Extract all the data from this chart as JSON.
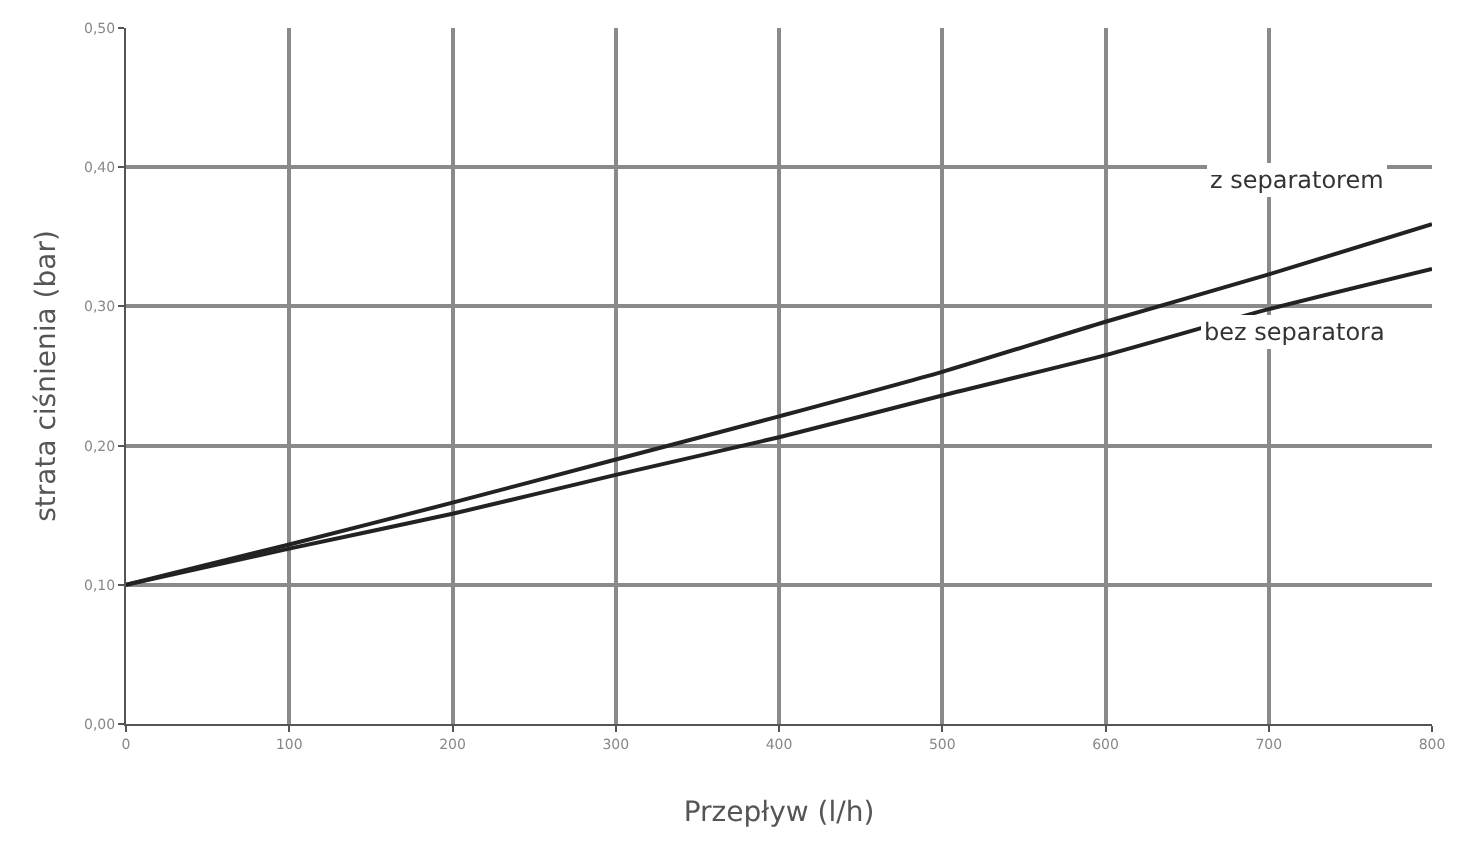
{
  "chart_data": {
    "type": "line",
    "xlabel": "Przepływ (l/h)",
    "ylabel": "strata ciśnienia (bar)",
    "x": [
      0,
      100,
      200,
      300,
      400,
      500,
      600,
      700,
      800
    ],
    "series": [
      {
        "name": "z separatorem",
        "color": "#222222",
        "values": [
          0.1,
          0.129,
          0.159,
          0.19,
          0.221,
          0.253,
          0.289,
          0.323,
          0.359
        ]
      },
      {
        "name": "bez separatora",
        "color": "#222222",
        "values": [
          0.1,
          0.126,
          0.151,
          0.179,
          0.206,
          0.236,
          0.265,
          0.298,
          0.327
        ]
      }
    ],
    "xlim": [
      0,
      800
    ],
    "xticks": [
      0,
      100,
      200,
      300,
      400,
      500,
      600,
      700,
      800
    ],
    "ylim": [
      0,
      0.5
    ],
    "yticks": [
      {
        "value": 0,
        "label": "0,00"
      },
      {
        "value": 0.1,
        "label": "0,10"
      },
      {
        "value": 0.2,
        "label": "0,20"
      },
      {
        "value": 0.3,
        "label": "0,30"
      },
      {
        "value": 0.4,
        "label": "0,40"
      },
      {
        "value": 0.5,
        "label": "0,50"
      }
    ],
    "grid": true,
    "legend": false,
    "marker": "none",
    "line_style": "solid"
  }
}
